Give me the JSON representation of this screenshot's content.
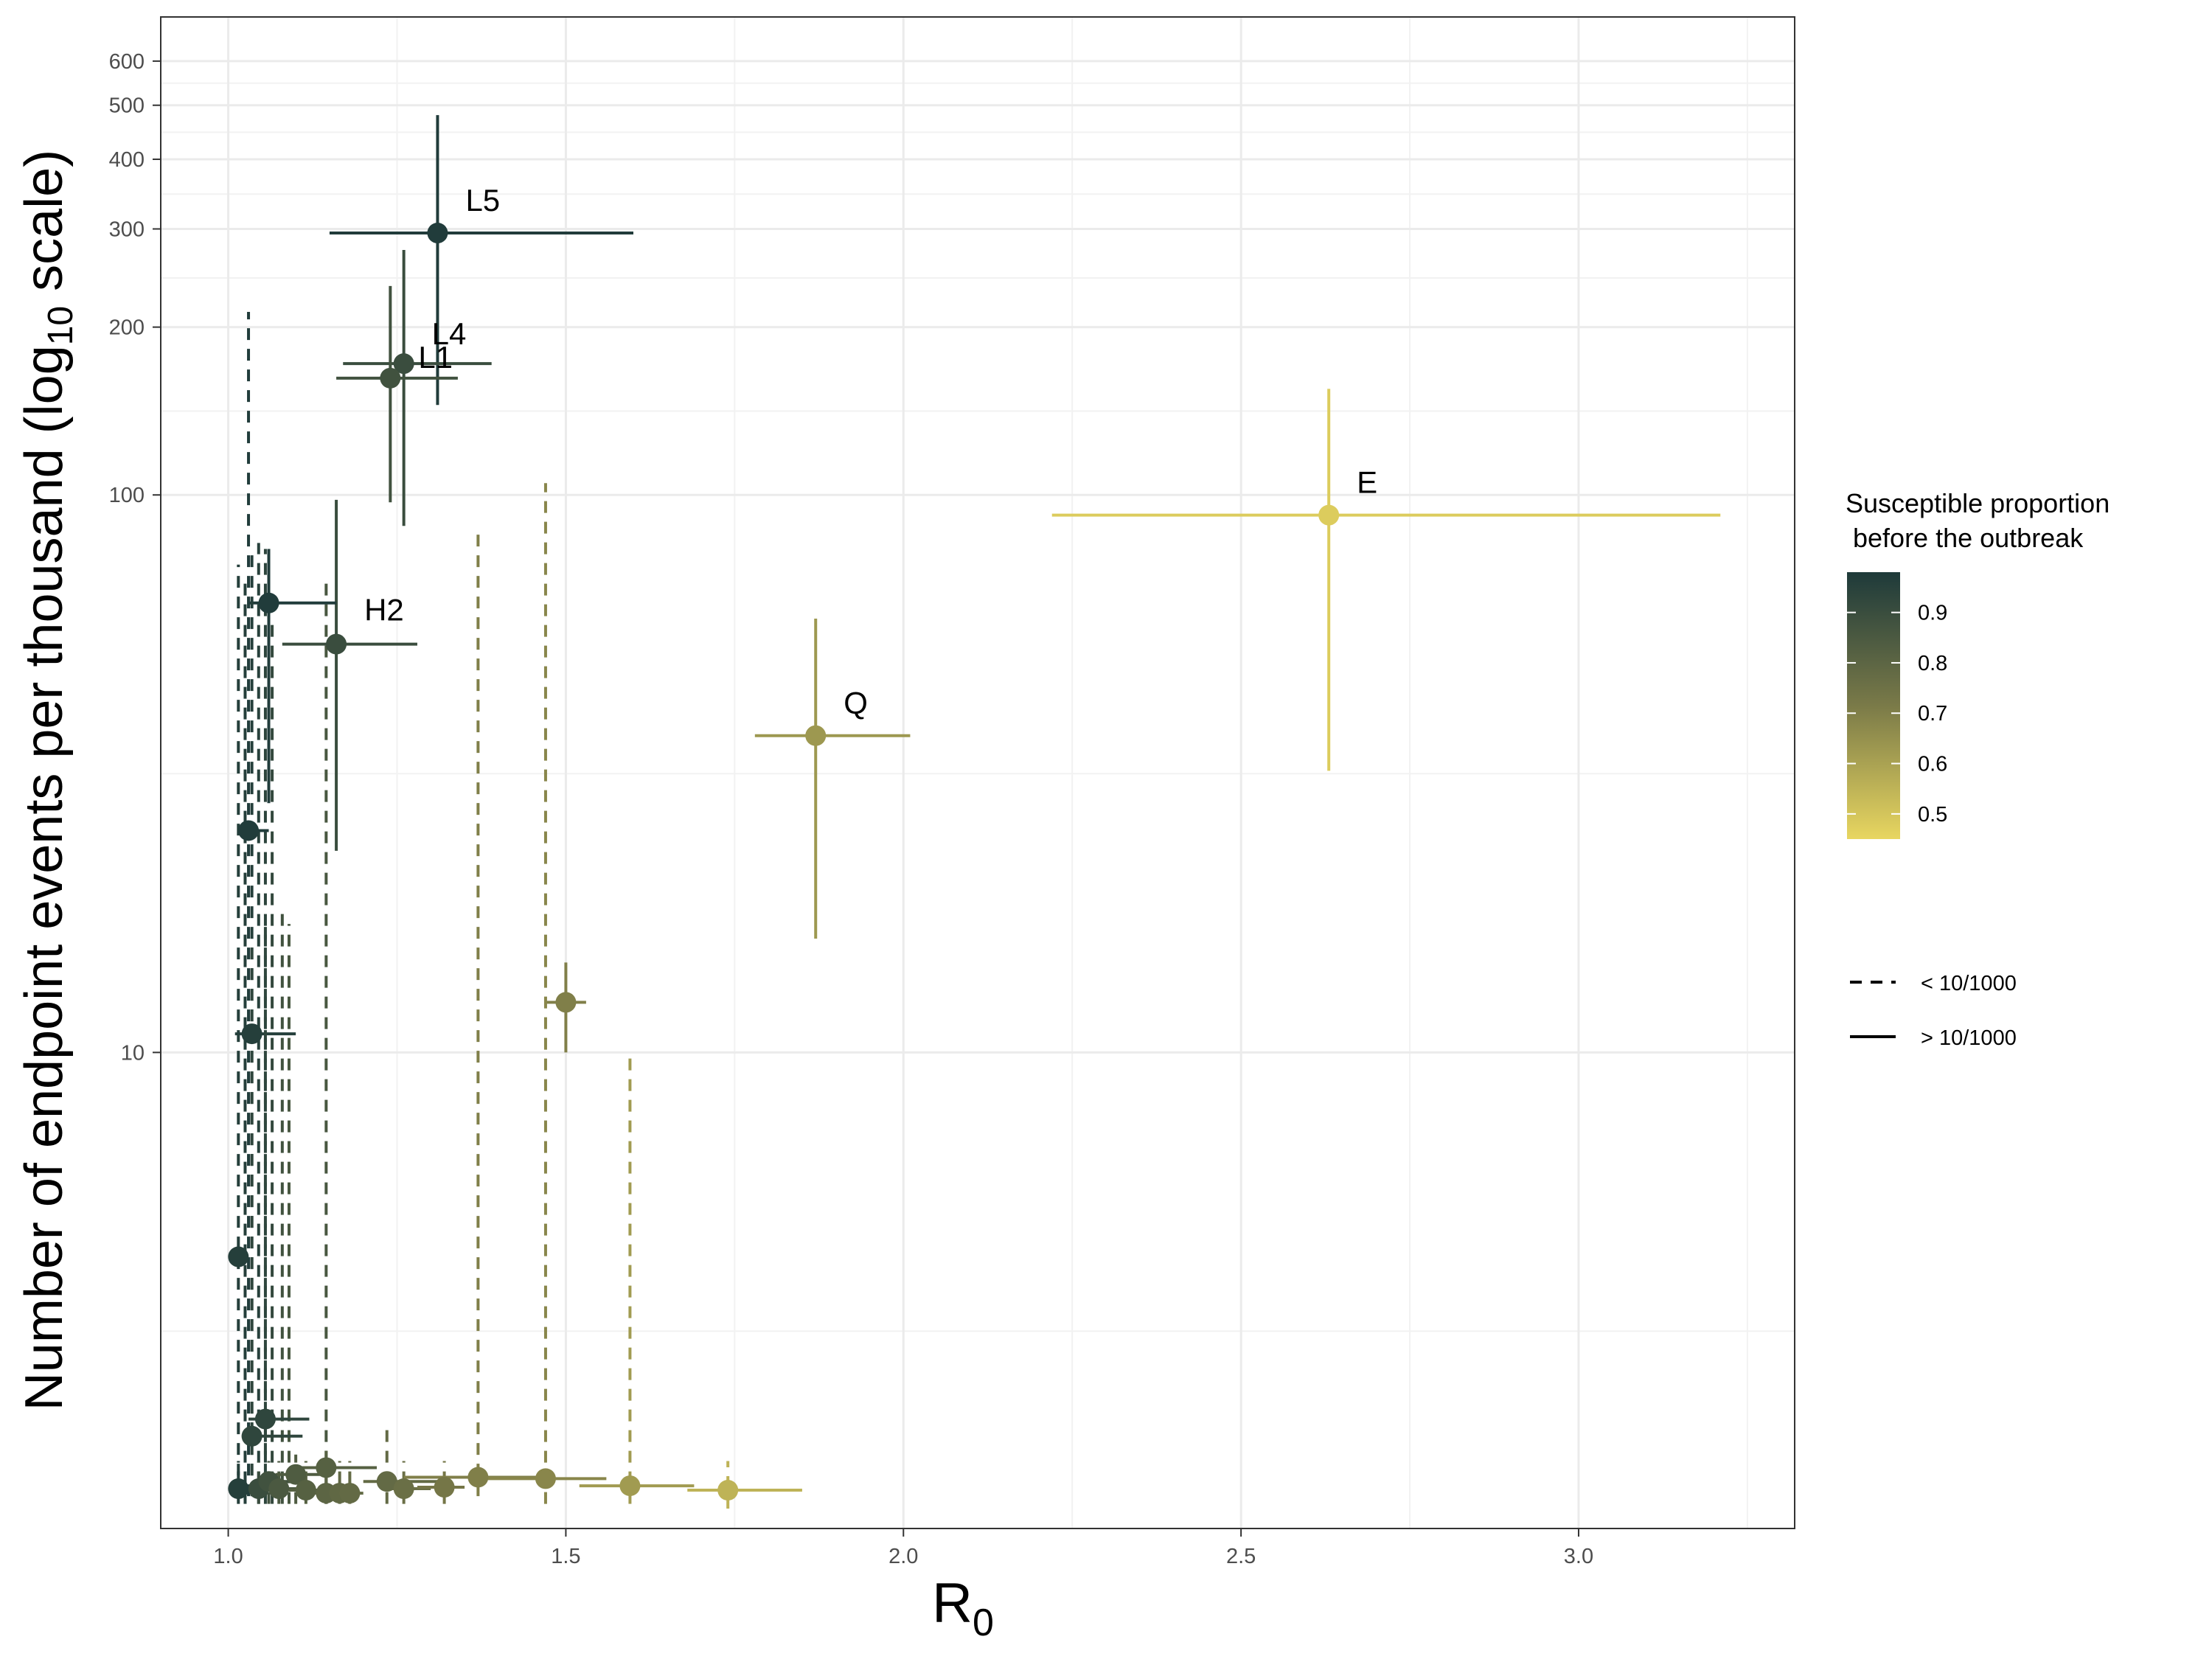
{
  "chart_data": {
    "type": "scatter",
    "xlabel": "R",
    "xlabel_sub": "0",
    "ylabel_main": "Number of endpoint events per thousand (log",
    "ylabel_sub": "10",
    "ylabel_tail": " scale)",
    "x_scale": "linear",
    "y_scale": "log10",
    "xlim": [
      0.9,
      3.32
    ],
    "ylim": [
      1.4,
      720
    ],
    "x_ticks": [
      1.0,
      1.5,
      2.0,
      2.5,
      3.0
    ],
    "x_tick_labels": [
      "1.0",
      "1.5",
      "2.0",
      "2.5",
      "3.0"
    ],
    "y_ticks": [
      10,
      100,
      200,
      300,
      400,
      500,
      600
    ],
    "y_tick_labels": [
      "10",
      "100",
      "200",
      "300",
      "400",
      "500",
      "600"
    ],
    "grid": true,
    "legend_position": "right",
    "color_legend": {
      "title_line1": "Susceptible proportion",
      "title_line2": " before the outbreak",
      "range": [
        0.45,
        0.98
      ],
      "tick_values": [
        0.9,
        0.8,
        0.7,
        0.6,
        0.5
      ],
      "tick_labels": [
        "0.9",
        "0.8",
        "0.7",
        "0.6",
        "0.5"
      ],
      "color_high": "#1e3a3a",
      "color_low": "#e8d660"
    },
    "linetype_legend": {
      "items": [
        {
          "label": "< 10/1000",
          "style": "dashed"
        },
        {
          "label": "> 10/1000",
          "style": "solid"
        }
      ]
    },
    "points": [
      {
        "label": "E",
        "x": 2.63,
        "xlo": 2.22,
        "xhi": 3.21,
        "y": 92,
        "ylo": 32,
        "yhi": 155,
        "s": 0.48,
        "dashed": false
      },
      {
        "label": "Q",
        "x": 1.87,
        "xlo": 1.78,
        "xhi": 2.01,
        "y": 37,
        "ylo": 16,
        "yhi": 60,
        "s": 0.63,
        "dashed": false
      },
      {
        "label": "L5",
        "x": 1.31,
        "xlo": 1.15,
        "xhi": 1.6,
        "y": 295,
        "ylo": 145,
        "yhi": 480,
        "s": 0.97,
        "dashed": false
      },
      {
        "label": "L4",
        "x": 1.26,
        "xlo": 1.17,
        "xhi": 1.39,
        "y": 172,
        "ylo": 88,
        "yhi": 275,
        "s": 0.9,
        "dashed": false
      },
      {
        "label": "L1",
        "x": 1.24,
        "xlo": 1.16,
        "xhi": 1.34,
        "y": 162,
        "ylo": 97,
        "yhi": 237,
        "s": 0.88,
        "dashed": false
      },
      {
        "label": "H2",
        "x": 1.16,
        "xlo": 1.08,
        "xhi": 1.28,
        "y": 54,
        "ylo": 23,
        "yhi": 98,
        "s": 0.9,
        "dashed": false
      },
      {
        "label": "",
        "x": 1.06,
        "xlo": 1.03,
        "xhi": 1.16,
        "y": 64,
        "ylo": 28,
        "yhi": 80,
        "s": 0.97,
        "dashed": false
      },
      {
        "label": "",
        "x": 1.03,
        "xlo": 1.02,
        "xhi": 1.06,
        "y": 25,
        "ylo": 1.6,
        "yhi": 213,
        "s": 0.97,
        "dashed": true
      },
      {
        "label": "",
        "x": 1.035,
        "xlo": 1.01,
        "xhi": 1.1,
        "y": 10.8,
        "ylo": 1.6,
        "yhi": 80,
        "s": 0.96,
        "dashed": true
      },
      {
        "label": "",
        "x": 1.015,
        "xlo": 1.01,
        "xhi": 1.03,
        "y": 4.3,
        "ylo": 1.6,
        "yhi": 75,
        "s": 0.96,
        "dashed": true
      },
      {
        "label": "",
        "x": 1.5,
        "xlo": 1.47,
        "xhi": 1.53,
        "y": 12.3,
        "ylo": 10.0,
        "yhi": 14.5,
        "s": 0.7,
        "dashed": false
      },
      {
        "label": "",
        "x": 1.055,
        "xlo": 1.03,
        "xhi": 1.12,
        "y": 2.2,
        "ylo": 1.6,
        "yhi": 17,
        "s": 0.93,
        "dashed": true
      },
      {
        "label": "",
        "x": 1.035,
        "xlo": 1.02,
        "xhi": 1.11,
        "y": 2.05,
        "ylo": 1.6,
        "yhi": 16,
        "s": 0.93,
        "dashed": true
      },
      {
        "label": "",
        "x": 1.015,
        "xlo": 1.0,
        "xhi": 1.03,
        "y": 1.65,
        "ylo": 1.55,
        "yhi": 1.85,
        "s": 0.96,
        "dashed": true
      },
      {
        "label": "",
        "x": 1.045,
        "xlo": 1.03,
        "xhi": 1.08,
        "y": 1.65,
        "ylo": 1.55,
        "yhi": 1.85,
        "s": 0.9,
        "dashed": true
      },
      {
        "label": "",
        "x": 1.06,
        "xlo": 1.04,
        "xhi": 1.09,
        "y": 1.7,
        "ylo": 1.55,
        "yhi": 1.85,
        "s": 0.88,
        "dashed": true
      },
      {
        "label": "",
        "x": 1.075,
        "xlo": 1.05,
        "xhi": 1.11,
        "y": 1.65,
        "ylo": 1.55,
        "yhi": 1.85,
        "s": 0.85,
        "dashed": true
      },
      {
        "label": "",
        "x": 1.1,
        "xlo": 1.07,
        "xhi": 1.14,
        "y": 1.75,
        "ylo": 1.55,
        "yhi": 1.9,
        "s": 0.84,
        "dashed": true
      },
      {
        "label": "",
        "x": 1.115,
        "xlo": 1.09,
        "xhi": 1.15,
        "y": 1.64,
        "ylo": 1.55,
        "yhi": 1.85,
        "s": 0.82,
        "dashed": true
      },
      {
        "label": "",
        "x": 1.145,
        "xlo": 1.1,
        "xhi": 1.22,
        "y": 1.8,
        "ylo": 1.55,
        "yhi": 2.0,
        "s": 0.82,
        "dashed": true
      },
      {
        "label": "",
        "x": 1.145,
        "xlo": 1.12,
        "xhi": 1.17,
        "y": 1.62,
        "ylo": 1.55,
        "yhi": 1.85,
        "s": 0.8,
        "dashed": true
      },
      {
        "label": "",
        "x": 1.165,
        "xlo": 1.14,
        "xhi": 1.19,
        "y": 1.62,
        "ylo": 1.55,
        "yhi": 1.85,
        "s": 0.79,
        "dashed": true
      },
      {
        "label": "",
        "x": 1.18,
        "xlo": 1.16,
        "xhi": 1.2,
        "y": 1.62,
        "ylo": 1.55,
        "yhi": 1.85,
        "s": 0.78,
        "dashed": true
      },
      {
        "label": "",
        "x": 1.235,
        "xlo": 1.2,
        "xhi": 1.33,
        "y": 1.7,
        "ylo": 1.55,
        "yhi": 2.15,
        "s": 0.78,
        "dashed": true
      },
      {
        "label": "",
        "x": 1.26,
        "xlo": 1.23,
        "xhi": 1.3,
        "y": 1.65,
        "ylo": 1.55,
        "yhi": 1.85,
        "s": 0.76,
        "dashed": true
      },
      {
        "label": "",
        "x": 1.32,
        "xlo": 1.28,
        "xhi": 1.35,
        "y": 1.66,
        "ylo": 1.55,
        "yhi": 1.85,
        "s": 0.73,
        "dashed": true
      },
      {
        "label": "",
        "x": 1.37,
        "xlo": 1.26,
        "xhi": 1.47,
        "y": 1.73,
        "ylo": 1.6,
        "yhi": 86,
        "s": 0.7,
        "dashed": true
      },
      {
        "label": "",
        "x": 1.47,
        "xlo": 1.37,
        "xhi": 1.56,
        "y": 1.72,
        "ylo": 1.55,
        "yhi": 105,
        "s": 0.68,
        "dashed": true
      },
      {
        "label": "",
        "x": 1.595,
        "xlo": 1.52,
        "xhi": 1.69,
        "y": 1.67,
        "ylo": 1.55,
        "yhi": 9.8,
        "s": 0.62,
        "dashed": true
      },
      {
        "label": "",
        "x": 1.74,
        "xlo": 1.68,
        "xhi": 1.85,
        "y": 1.64,
        "ylo": 1.52,
        "yhi": 1.85,
        "s": 0.55,
        "dashed": true
      }
    ],
    "extra_dashed_lines": [
      {
        "x": 1.025,
        "ylo": 1.55,
        "yhi": 70,
        "s": 0.96
      },
      {
        "x": 1.045,
        "ylo": 1.55,
        "yhi": 82,
        "s": 0.95
      },
      {
        "x": 1.055,
        "ylo": 1.55,
        "yhi": 80,
        "s": 0.94
      },
      {
        "x": 1.065,
        "ylo": 1.55,
        "yhi": 60,
        "s": 0.92
      },
      {
        "x": 1.08,
        "ylo": 1.55,
        "yhi": 18,
        "s": 0.88
      },
      {
        "x": 1.09,
        "ylo": 1.55,
        "yhi": 17,
        "s": 0.86
      },
      {
        "x": 1.145,
        "ylo": 1.55,
        "yhi": 70,
        "s": 0.86
      }
    ]
  }
}
